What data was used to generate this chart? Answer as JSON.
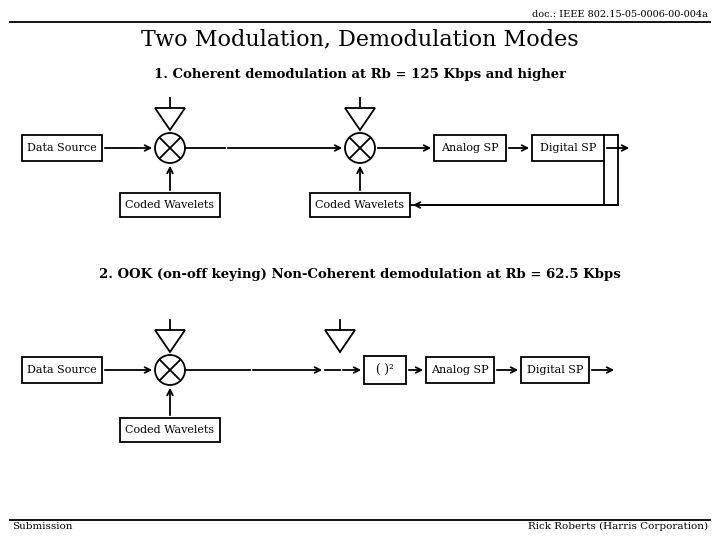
{
  "doc_ref": "doc.: IEEE 802.15-05-0006-00-004a",
  "title": "Two Modulation, Demodulation Modes",
  "subtitle1": "1. Coherent demodulation at Rb = 125 Kbps and higher",
  "subtitle2": "2. OOK (on-off keying) Non-Coherent demodulation at Rb = 62.5 Kbps",
  "footer_left": "Submission",
  "footer_right": "Rick Roberts (Harris Corporation)",
  "bg_color": "#ffffff"
}
